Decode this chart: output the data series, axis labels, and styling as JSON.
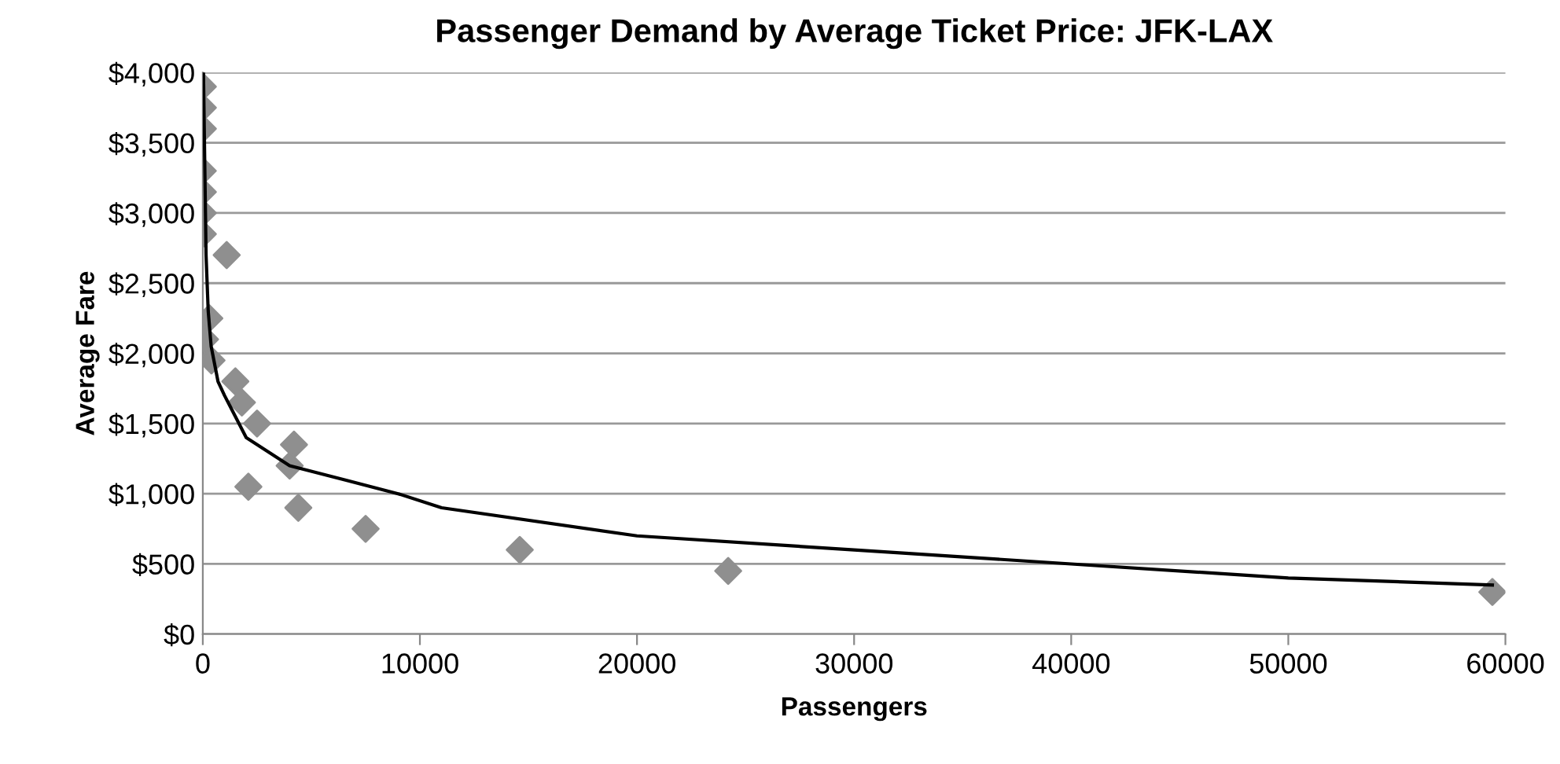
{
  "chart_data": {
    "type": "scatter",
    "title": "Passenger Demand by Average Ticket Price: JFK-LAX",
    "xlabel": "Passengers",
    "ylabel": "Average Fare",
    "xlim": [
      0,
      60000
    ],
    "xticks": [
      0,
      10000,
      20000,
      30000,
      40000,
      50000,
      60000
    ],
    "ylim": [
      0,
      4000
    ],
    "yticks": [
      {
        "value": 0,
        "label": "$0"
      },
      {
        "value": 500,
        "label": "$500"
      },
      {
        "value": 1000,
        "label": "$1,000"
      },
      {
        "value": 1500,
        "label": "$1,500"
      },
      {
        "value": 2000,
        "label": "$2,000"
      },
      {
        "value": 2500,
        "label": "$2,500"
      },
      {
        "value": 3000,
        "label": "$3,000"
      },
      {
        "value": 3500,
        "label": "$3,500"
      },
      {
        "value": 4000,
        "label": "$4,000"
      }
    ],
    "grid": "y",
    "legend": false,
    "series": [
      {
        "color": "#8f8f8f",
        "marker": "diamond",
        "x": [
          0,
          0,
          0,
          0,
          0,
          0,
          0,
          1100,
          300,
          100,
          400,
          1500,
          1800,
          2500,
          4200,
          4000,
          2100,
          4400,
          7500,
          14600,
          24200,
          59400
        ],
        "values": [
          3900,
          3750,
          3600,
          3300,
          3150,
          3000,
          2850,
          2700,
          2250,
          2100,
          1950,
          1800,
          1650,
          1500,
          1350,
          1200,
          1050,
          900,
          750,
          600,
          450,
          300
        ]
      },
      {
        "type": "line",
        "color": "#000000",
        "marker": "none",
        "line_style": "solid",
        "x": [
          30,
          150,
          250,
          385,
          700,
          1000,
          2000,
          4000,
          6500,
          9000,
          11000,
          20000,
          30000,
          40000,
          50000,
          59400
        ],
        "values": [
          4000,
          2700,
          2300,
          2050,
          1800,
          1700,
          1400,
          1200,
          1100,
          1000,
          900,
          700,
          600,
          500,
          400,
          350
        ]
      }
    ]
  }
}
